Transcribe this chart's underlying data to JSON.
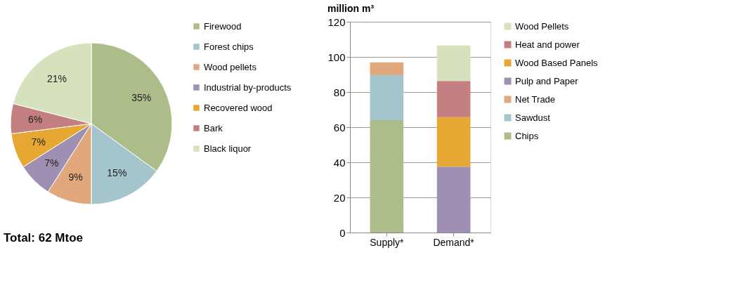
{
  "chart_data": [
    {
      "type": "pie",
      "categories": [
        "Firewood",
        "Forest chips",
        "Wood pellets",
        "Industrial by-products",
        "Recovered wood",
        "Bark",
        "Black liquor"
      ],
      "values": [
        35,
        15,
        9,
        7,
        7,
        6,
        21
      ],
      "value_labels": [
        "35%",
        "15%",
        "9%",
        "7%",
        "7%",
        "6%",
        "21%"
      ],
      "colors": [
        "#adbd8a",
        "#a5c5cc",
        "#e0a87c",
        "#9e8fb3",
        "#e6a832",
        "#c48080",
        "#d6e2bd"
      ],
      "legend": "right",
      "annotations": [
        "Total: 62 Mtoe"
      ]
    },
    {
      "type": "bar",
      "stacked": true,
      "ylabel": "million m³",
      "categories": [
        "Supply*",
        "Demand*"
      ],
      "ylim": [
        0,
        120
      ],
      "yticks": [
        0,
        20,
        40,
        60,
        80,
        100,
        120
      ],
      "grid": "y",
      "legend": "right",
      "series": [
        {
          "name": "Chips",
          "color": "#adbd8a",
          "values": [
            64.0,
            null
          ]
        },
        {
          "name": "Sawdust",
          "color": "#a5c5cc",
          "values": [
            25.6,
            null
          ]
        },
        {
          "name": "Net Trade",
          "color": "#e0a87c",
          "values": [
            7.3,
            null
          ]
        },
        {
          "name": "Pulp and Paper",
          "color": "#9e8fb3",
          "values": [
            null,
            37.5
          ]
        },
        {
          "name": "Wood Based Panels",
          "color": "#e6a832",
          "values": [
            null,
            28.2
          ]
        },
        {
          "name": "Heat and power",
          "color": "#c48080",
          "values": [
            null,
            20.6
          ]
        },
        {
          "name": "Wood Pellets",
          "color": "#d6e2bd",
          "values": [
            null,
            20.2
          ]
        }
      ]
    }
  ]
}
